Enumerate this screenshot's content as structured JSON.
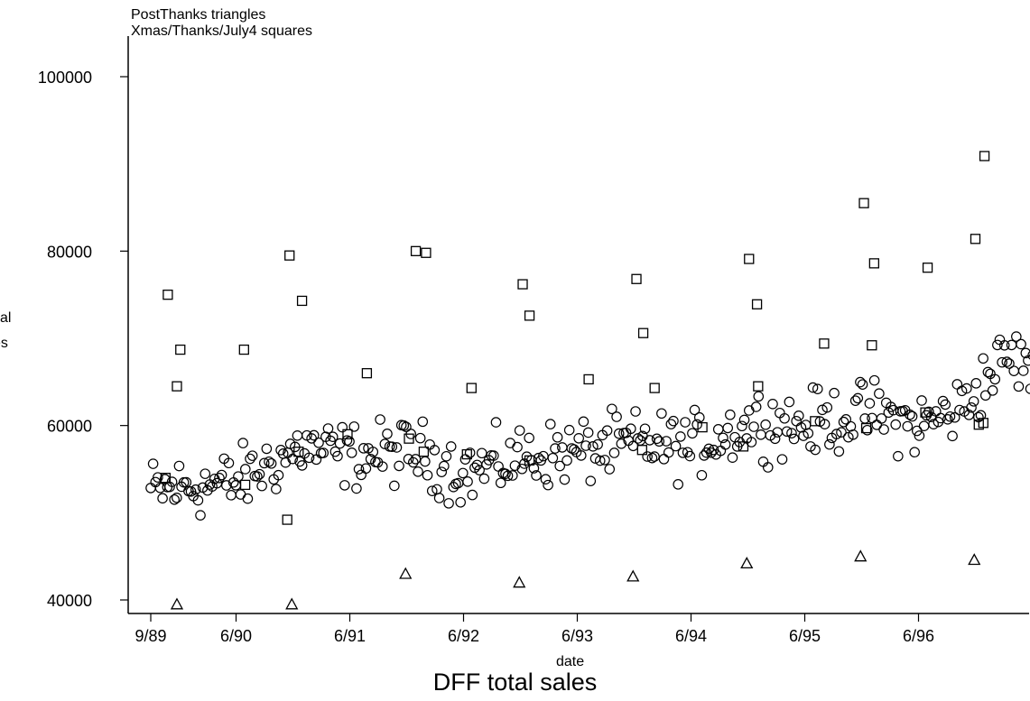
{
  "legend": {
    "line1": "PostThanks triangles",
    "line2": "Xmas/Thanks/July4 squares"
  },
  "chart_data": {
    "type": "scatter",
    "title": "DFF total sales",
    "xlabel": "date",
    "ylabel_fragments": [
      "sal",
      "es"
    ],
    "xlim": [
      1989.6,
      1997.6
    ],
    "ylim": [
      38000,
      103000
    ],
    "x_ticks": [
      {
        "value": 1989.67,
        "label": "9/89"
      },
      {
        "value": 1990.42,
        "label": "6/90"
      },
      {
        "value": 1991.42,
        "label": "6/91"
      },
      {
        "value": 1992.42,
        "label": "6/92"
      },
      {
        "value": 1993.42,
        "label": "6/93"
      },
      {
        "value": 1994.42,
        "label": "6/94"
      },
      {
        "value": 1995.42,
        "label": "6/95"
      },
      {
        "value": 1996.42,
        "label": "6/96"
      }
    ],
    "y_ticks": [
      {
        "value": 40000,
        "label": "40000"
      },
      {
        "value": 60000,
        "label": "60000"
      },
      {
        "value": 80000,
        "label": "80000"
      },
      {
        "value": 100000,
        "label": "100000"
      }
    ],
    "grid": false,
    "series": [
      {
        "marker": "circle",
        "trend": [
          [
            1989.67,
            52500
          ],
          [
            1990.42,
            53500
          ],
          [
            1991.0,
            57500
          ],
          [
            1991.42,
            56500
          ],
          [
            1992.0,
            57000
          ],
          [
            1992.42,
            54500
          ],
          [
            1993.0,
            56500
          ],
          [
            1993.42,
            57000
          ],
          [
            1994.0,
            58000
          ],
          [
            1994.42,
            57500
          ],
          [
            1995.0,
            60500
          ],
          [
            1995.42,
            60000
          ],
          [
            1996.0,
            61500
          ],
          [
            1996.42,
            60000
          ],
          [
            1996.8,
            62000
          ],
          [
            1997.2,
            68000
          ],
          [
            1997.55,
            66000
          ]
        ],
        "spread": 2600,
        "count": 380
      },
      {
        "marker": "square",
        "points": [
          [
            1989.82,
            75000
          ],
          [
            1989.9,
            64500
          ],
          [
            1989.93,
            68700
          ],
          [
            1989.8,
            54000
          ],
          [
            1990.5,
            53200
          ],
          [
            1990.49,
            68700
          ],
          [
            1990.87,
            49200
          ],
          [
            1990.89,
            79500
          ],
          [
            1991.0,
            74300
          ],
          [
            1990.97,
            57000
          ],
          [
            1991.4,
            59000
          ],
          [
            1991.57,
            66000
          ],
          [
            1991.94,
            58500
          ],
          [
            1992.0,
            80000
          ],
          [
            1992.07,
            57000
          ],
          [
            1992.09,
            79800
          ],
          [
            1992.45,
            56700
          ],
          [
            1992.49,
            64300
          ],
          [
            1992.94,
            76200
          ],
          [
            1993.0,
            72600
          ],
          [
            1993.0,
            56000
          ],
          [
            1993.52,
            65300
          ],
          [
            1993.94,
            76800
          ],
          [
            1993.99,
            57200
          ],
          [
            1994.0,
            70600
          ],
          [
            1994.1,
            64300
          ],
          [
            1994.52,
            59800
          ],
          [
            1994.93,
            79100
          ],
          [
            1994.88,
            57600
          ],
          [
            1995.0,
            73900
          ],
          [
            1995.01,
            64500
          ],
          [
            1995.51,
            60500
          ],
          [
            1995.59,
            69400
          ],
          [
            1995.94,
            85500
          ],
          [
            1995.96,
            59700
          ],
          [
            1996.03,
            78600
          ],
          [
            1996.01,
            69200
          ],
          [
            1996.48,
            61500
          ],
          [
            1996.5,
            78100
          ],
          [
            1996.92,
            81400
          ],
          [
            1997.0,
            90900
          ],
          [
            1996.95,
            60100
          ],
          [
            1996.99,
            60300
          ]
        ]
      },
      {
        "marker": "triangle",
        "points": [
          [
            1989.9,
            39500
          ],
          [
            1990.91,
            39500
          ],
          [
            1991.91,
            43000
          ],
          [
            1992.91,
            42000
          ],
          [
            1993.91,
            42700
          ],
          [
            1994.91,
            44200
          ],
          [
            1995.91,
            45000
          ],
          [
            1996.91,
            44600
          ]
        ]
      }
    ]
  }
}
